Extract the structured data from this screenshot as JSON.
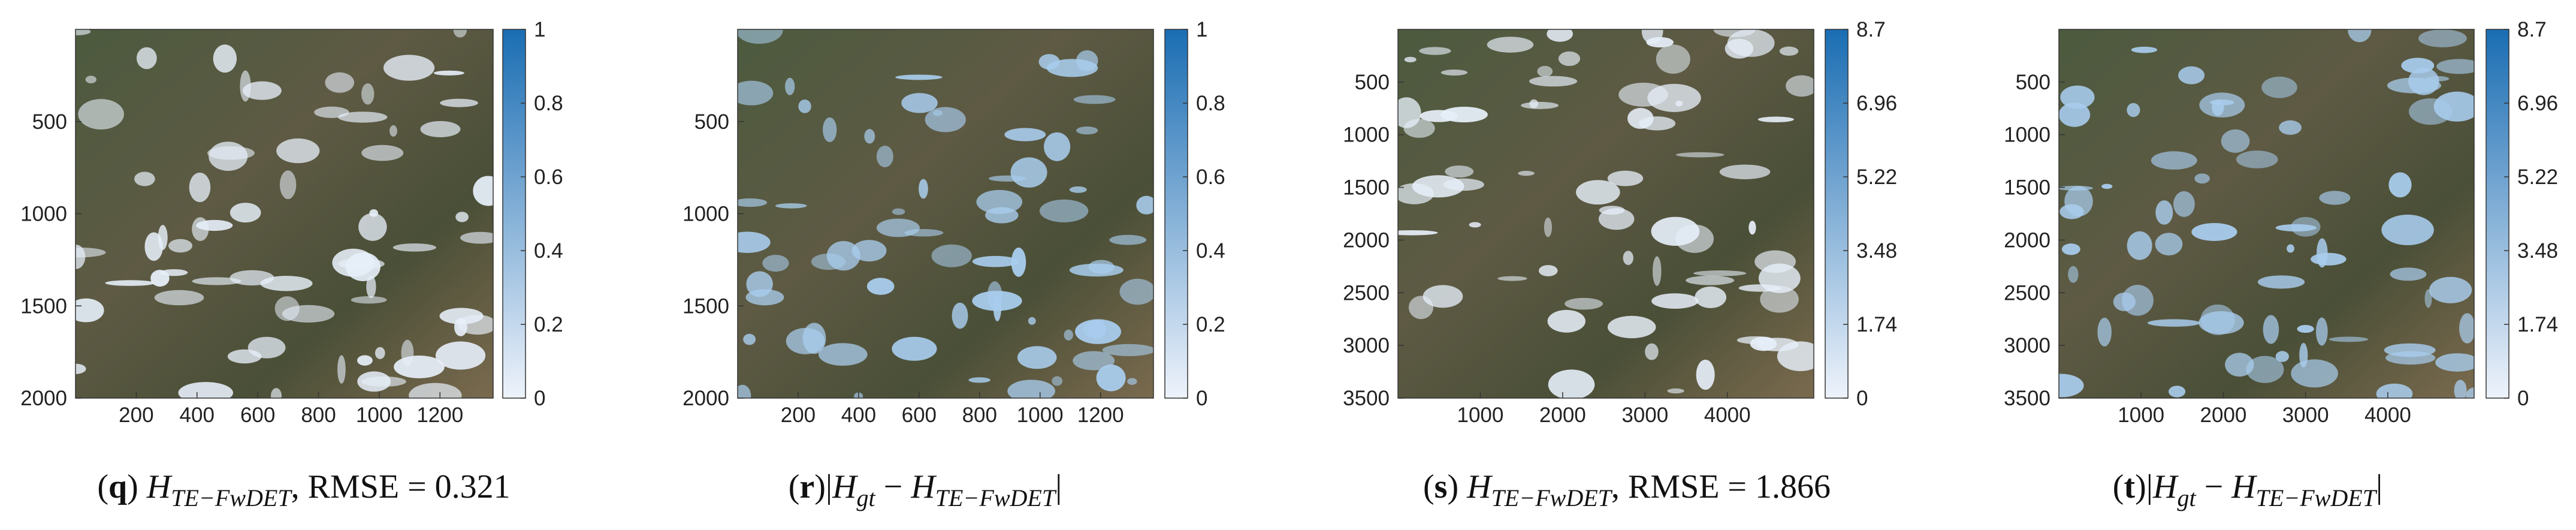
{
  "chart_data": [
    {
      "type": "heatmap",
      "xlim": [
        0,
        1375
      ],
      "ylim": [
        2000,
        0
      ],
      "xticks": [
        200,
        400,
        600,
        800,
        1000,
        1200
      ],
      "yticks": [
        500,
        1000,
        1500,
        2000
      ],
      "clim": [
        0,
        1
      ],
      "cticks": [
        0,
        0.2,
        0.4,
        0.6,
        0.8,
        1
      ],
      "colormap": [
        "#eef3fb",
        "#1a6db3"
      ],
      "caption": [
        {
          "text": "(",
          "style": "plain"
        },
        {
          "text": "q",
          "style": "bold"
        },
        {
          "text": ")",
          "style": "plain"
        },
        {
          "text": "H",
          "style": "math"
        },
        {
          "text": "TE−FwDET",
          "style": "sub"
        },
        {
          "text": ", RMSE = 0.321",
          "style": "plain"
        }
      ]
    },
    {
      "type": "heatmap",
      "xlim": [
        0,
        1375
      ],
      "ylim": [
        2000,
        0
      ],
      "xticks": [
        200,
        400,
        600,
        800,
        1000,
        1200
      ],
      "yticks": [
        500,
        1000,
        1500,
        2000
      ],
      "clim": [
        0,
        1
      ],
      "cticks": [
        0,
        0.2,
        0.4,
        0.6,
        0.8,
        1
      ],
      "colormap": [
        "#eef3fb",
        "#1a6db3"
      ],
      "caption": [
        {
          "text": "(",
          "style": "plain"
        },
        {
          "text": "r",
          "style": "bold"
        },
        {
          "text": ")",
          "style": "plain"
        },
        {
          "text": "|",
          "style": "plain"
        },
        {
          "text": "H",
          "style": "math"
        },
        {
          "text": "gt",
          "style": "sub"
        },
        {
          "text": " − ",
          "style": "plain"
        },
        {
          "text": "H",
          "style": "math"
        },
        {
          "text": "TE−FwDET",
          "style": "sub"
        },
        {
          "text": "|",
          "style": "plain"
        }
      ]
    },
    {
      "type": "heatmap",
      "xlim": [
        0,
        5050
      ],
      "ylim": [
        3500,
        0
      ],
      "xticks": [
        1000,
        2000,
        3000,
        4000
      ],
      "yticks": [
        500,
        1000,
        1500,
        2000,
        2500,
        3000,
        3500
      ],
      "clim": [
        0,
        8.7
      ],
      "cticks": [
        0,
        1.74,
        3.48,
        5.22,
        6.96,
        8.7
      ],
      "colormap": [
        "#eef3fb",
        "#1a6db3"
      ],
      "caption": [
        {
          "text": "(",
          "style": "plain"
        },
        {
          "text": "s",
          "style": "bold"
        },
        {
          "text": ")",
          "style": "plain"
        },
        {
          "text": "H",
          "style": "math"
        },
        {
          "text": "TE−FwDET",
          "style": "sub"
        },
        {
          "text": ", RMSE = 1.866",
          "style": "plain"
        }
      ]
    },
    {
      "type": "heatmap",
      "xlim": [
        0,
        5050
      ],
      "ylim": [
        3500,
        0
      ],
      "xticks": [
        1000,
        2000,
        3000,
        4000
      ],
      "yticks": [
        500,
        1000,
        1500,
        2000,
        2500,
        3000,
        3500
      ],
      "clim": [
        0,
        8.7
      ],
      "cticks": [
        0,
        1.74,
        3.48,
        5.22,
        6.96,
        8.7
      ],
      "colormap": [
        "#eef3fb",
        "#1a6db3"
      ],
      "caption": [
        {
          "text": "(",
          "style": "plain"
        },
        {
          "text": "t",
          "style": "bold"
        },
        {
          "text": ")",
          "style": "plain"
        },
        {
          "text": "|",
          "style": "plain"
        },
        {
          "text": "H",
          "style": "math"
        },
        {
          "text": "gt",
          "style": "sub"
        },
        {
          "text": " − ",
          "style": "plain"
        },
        {
          "text": "H",
          "style": "math"
        },
        {
          "text": "TE−FwDET",
          "style": "sub"
        },
        {
          "text": "|",
          "style": "plain"
        }
      ]
    }
  ]
}
